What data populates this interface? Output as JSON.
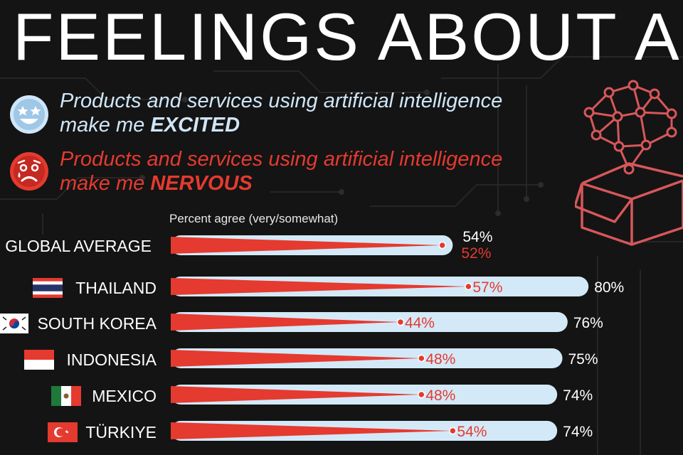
{
  "title": "FEELINGS ABOUT AI",
  "legend": {
    "excited": {
      "line1": "Products and services using artificial intelligence",
      "line2_prefix": "make me ",
      "emphasis": "EXCITED",
      "color": "#cfe6f7"
    },
    "nervous": {
      "line1": "Products and services using artificial intelligence",
      "line2_prefix": "make me ",
      "emphasis": "NERVOUS",
      "color": "#e53a2f"
    }
  },
  "icons": {
    "excited": "star-eyes-face-icon",
    "nervous": "worried-face-icon",
    "illustration": "brain-network-box-icon"
  },
  "chart_data": {
    "type": "bar",
    "subtitle": "Percent agree (very/somewhat)",
    "categories": [
      "GLOBAL AVERAGE",
      "THAILAND",
      "SOUTH KOREA",
      "INDONESIA",
      "MEXICO",
      "TÜRKIYE"
    ],
    "series": [
      {
        "name": "EXCITED",
        "values": [
          54,
          80,
          76,
          75,
          74,
          74
        ],
        "color": "#d3e9f8"
      },
      {
        "name": "NERVOUS",
        "values": [
          52,
          57,
          44,
          48,
          48,
          54
        ],
        "color": "#e53a2f"
      }
    ],
    "value_labels": {
      "excited": [
        "54%",
        "80%",
        "76%",
        "75%",
        "74%",
        "74%"
      ],
      "nervous": [
        "52%",
        "57%",
        "44%",
        "48%",
        "48%",
        "54%"
      ]
    },
    "xlim": [
      0,
      100
    ],
    "grid": false,
    "legend": "top-left"
  },
  "flags": [
    "",
    "thailand-flag",
    "south-korea-flag",
    "indonesia-flag",
    "mexico-flag",
    "turkiye-flag"
  ]
}
